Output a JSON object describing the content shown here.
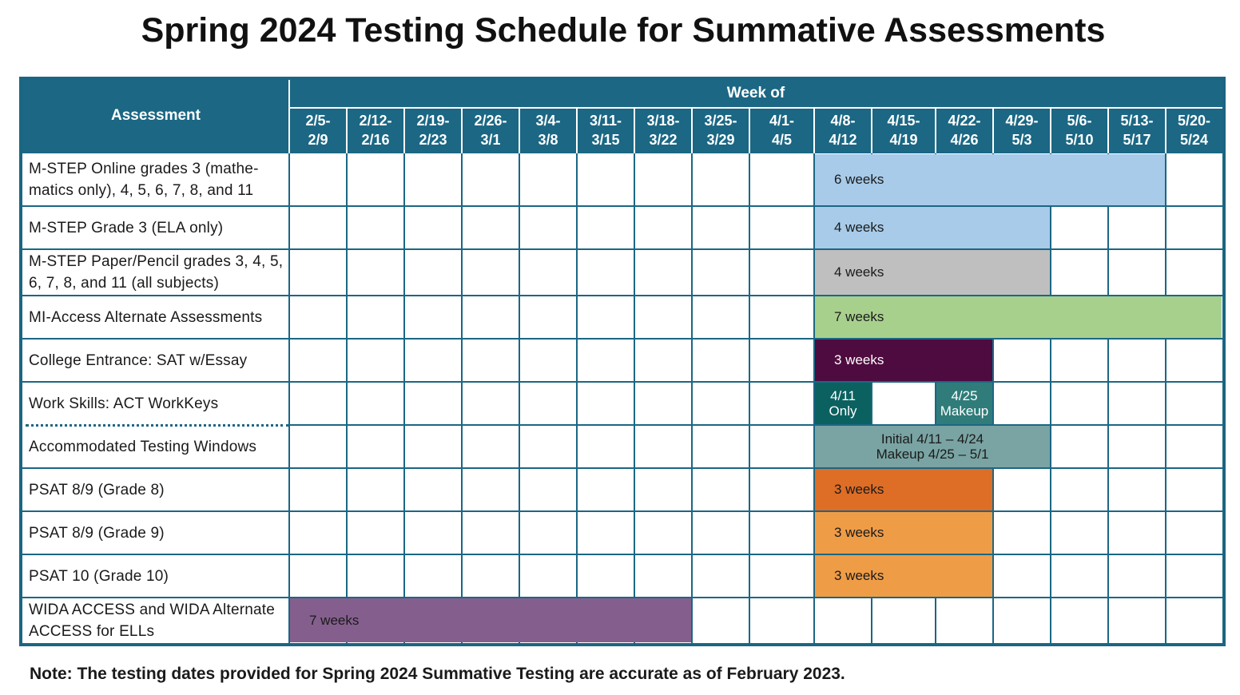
{
  "title": "Spring 2024 Testing Schedule for Summative Assessments",
  "header": {
    "assessment": "Assessment",
    "week_of": "Week of",
    "weeks": [
      "2/5-\n2/9",
      "2/12-\n2/16",
      "2/19-\n2/23",
      "2/26-\n3/1",
      "3/4-\n3/8",
      "3/11-\n3/15",
      "3/18-\n3/22",
      "3/25-\n3/29",
      "4/1-\n4/5",
      "4/8-\n4/12",
      "4/15-\n4/19",
      "4/22-\n4/26",
      "4/29-\n5/3",
      "5/6-\n5/10",
      "5/13-\n5/17",
      "5/20-\n5/24"
    ]
  },
  "rows": [
    {
      "label": "M-STEP Online grades 3 (mathe-\nmatics only), 4, 5, 6, 7, 8, and 11",
      "bars": [
        {
          "text": "6 weeks",
          "start": 9,
          "end": 14,
          "color": "#a7cbe9"
        }
      ]
    },
    {
      "label": "M-STEP Grade 3 (ELA only)",
      "bars": [
        {
          "text": "4 weeks",
          "start": 9,
          "end": 12,
          "color": "#a7cbe9"
        }
      ]
    },
    {
      "label": "M-STEP Paper/Pencil grades 3, 4, 5,\n6, 7, 8, and 11 (all subjects)",
      "bars": [
        {
          "text": "4 weeks",
          "start": 9,
          "end": 12,
          "color": "#bfbfbf"
        }
      ]
    },
    {
      "label": "MI-Access Alternate Assessments",
      "bars": [
        {
          "text": "7 weeks",
          "start": 9,
          "end": 15,
          "color": "#a8d08d"
        }
      ]
    },
    {
      "label": "College Entrance: SAT w/Essay",
      "bars": [
        {
          "text": "3 weeks",
          "start": 9,
          "end": 11,
          "color": "#4e0b3f",
          "white": true
        }
      ]
    },
    {
      "label": "Work Skills: ACT WorkKeys",
      "bars": [
        {
          "text": "4/11\nOnly",
          "start": 9,
          "end": 9,
          "color": "#0b6160",
          "white": true,
          "center": true
        },
        {
          "text": "4/25\nMakeup",
          "start": 11,
          "end": 11,
          "color": "#2f7c7a",
          "white": true,
          "center": true
        }
      ]
    },
    {
      "label": "Accommodated Testing Windows",
      "bars": [
        {
          "text": "Initial 4/11 – 4/24\nMakeup 4/25 – 5/1",
          "start": 9,
          "end": 12,
          "color": "#79a4a3",
          "center": true
        }
      ]
    },
    {
      "label": "PSAT 8/9 (Grade 8)",
      "bars": [
        {
          "text": "3 weeks",
          "start": 9,
          "end": 11,
          "color": "#de6d26"
        }
      ]
    },
    {
      "label": "PSAT 8/9 (Grade 9)",
      "bars": [
        {
          "text": "3 weeks",
          "start": 9,
          "end": 11,
          "color": "#ef9c47"
        }
      ]
    },
    {
      "label": "PSAT 10 (Grade 10)",
      "bars": [
        {
          "text": "3 weeks",
          "start": 9,
          "end": 11,
          "color": "#ef9c47"
        }
      ]
    },
    {
      "label": "WIDA ACCESS and WIDA Alternate\nACCESS for ELLs",
      "bars": [
        {
          "text": "7 weeks",
          "start": 0,
          "end": 6,
          "color": "#845f8d"
        }
      ]
    }
  ],
  "note": "Note:  The testing dates provided for Spring 2024 Summative Testing are accurate as of February 2023."
}
